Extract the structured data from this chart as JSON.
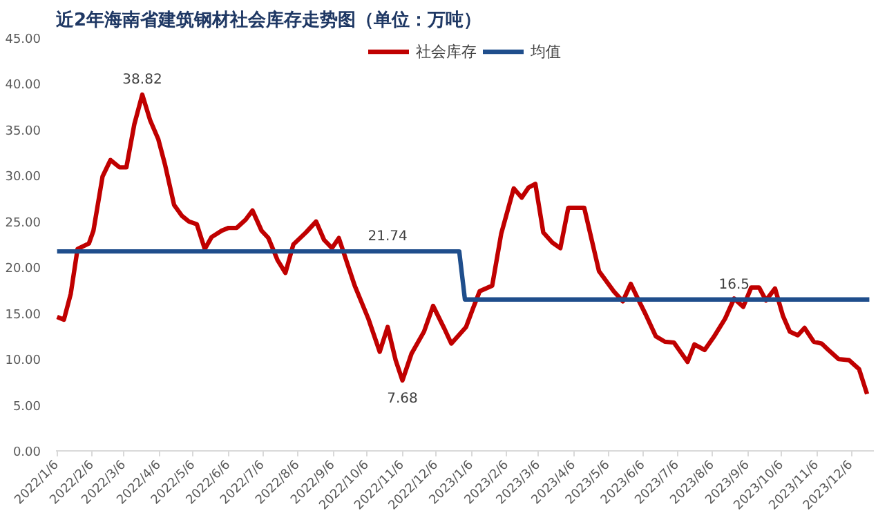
{
  "chart_data": {
    "type": "line",
    "title": "近2年海南省建筑钢材社会库存走势图（单位：万吨）",
    "series": [
      {
        "name": "社会库存",
        "color": "#c00000",
        "x": [
          "2022-01-06",
          "2022-01-12",
          "2022-01-18",
          "2022-01-24",
          "2022-02-03",
          "2022-02-07",
          "2022-02-15",
          "2022-02-22",
          "2022-03-02",
          "2022-03-08",
          "2022-03-15",
          "2022-03-22",
          "2022-03-29",
          "2022-04-05",
          "2022-04-11",
          "2022-04-19",
          "2022-04-26",
          "2022-05-02",
          "2022-05-09",
          "2022-05-16",
          "2022-05-22",
          "2022-05-31",
          "2022-06-06",
          "2022-06-13",
          "2022-06-21",
          "2022-06-27",
          "2022-07-05",
          "2022-07-11",
          "2022-07-19",
          "2022-07-26",
          "2022-08-02",
          "2022-08-13",
          "2022-08-22",
          "2022-08-29",
          "2022-09-05",
          "2022-09-11",
          "2022-09-25",
          "2022-10-07",
          "2022-10-17",
          "2022-10-24",
          "2022-10-31",
          "2022-11-06",
          "2022-11-14",
          "2022-11-25",
          "2022-12-03",
          "2022-12-13",
          "2022-12-19",
          "2023-01-01",
          "2023-01-07",
          "2023-01-13",
          "2023-01-24",
          "2023-02-01",
          "2023-02-12",
          "2023-02-19",
          "2023-02-25",
          "2023-03-03",
          "2023-03-10",
          "2023-03-18",
          "2023-03-25",
          "2023-04-01",
          "2023-04-15",
          "2023-04-28",
          "2023-05-11",
          "2023-05-19",
          "2023-05-26",
          "2023-06-02",
          "2023-06-08",
          "2023-06-17",
          "2023-06-25",
          "2023-07-03",
          "2023-07-15",
          "2023-07-21",
          "2023-07-30",
          "2023-08-07",
          "2023-08-17",
          "2023-08-25",
          "2023-09-02",
          "2023-09-09",
          "2023-09-16",
          "2023-09-22",
          "2023-09-30",
          "2023-10-07",
          "2023-10-13",
          "2023-10-20",
          "2023-10-26",
          "2023-11-03",
          "2023-11-10",
          "2023-11-16",
          "2023-11-25",
          "2023-12-04",
          "2023-12-13",
          "2023-12-20"
        ],
        "values": [
          14.6,
          14.3,
          17.1,
          22.0,
          22.6,
          24.0,
          29.9,
          31.7,
          30.9,
          30.9,
          35.6,
          38.82,
          36.0,
          34.0,
          31.2,
          26.8,
          25.6,
          25.0,
          24.7,
          22.0,
          23.3,
          24.0,
          24.3,
          24.3,
          25.2,
          26.2,
          24.0,
          23.2,
          20.8,
          19.4,
          22.5,
          23.8,
          25.0,
          23.0,
          22.1,
          23.2,
          18.0,
          14.4,
          10.8,
          13.5,
          9.9,
          7.68,
          10.6,
          13.0,
          15.8,
          13.3,
          11.7,
          13.5,
          15.5,
          17.4,
          18.0,
          23.7,
          28.6,
          27.6,
          28.7,
          29.1,
          23.8,
          22.7,
          22.1,
          26.5,
          26.5,
          19.6,
          17.4,
          16.3,
          18.2,
          16.4,
          14.9,
          12.5,
          11.9,
          11.8,
          9.7,
          11.6,
          11.0,
          12.4,
          14.4,
          16.6,
          15.7,
          17.8,
          17.8,
          16.4,
          17.7,
          14.7,
          13.0,
          12.6,
          13.4,
          11.9,
          11.7,
          11.0,
          10.0,
          9.9,
          8.9,
          6.2
        ]
      },
      {
        "name": "均值",
        "color": "#1f4e8c",
        "x": [
          "2022-01-06",
          "2022-12-26",
          "2022-12-31",
          "2023-12-22"
        ],
        "values": [
          21.74,
          21.74,
          16.5,
          16.5
        ]
      }
    ],
    "annotations": [
      {
        "text": "38.82",
        "x": "2022-03-22",
        "y": 38.82
      },
      {
        "text": "7.68",
        "x": "2022-11-06",
        "y": 7.68
      },
      {
        "text": "21.74",
        "x": "2022-10-24",
        "y": 21.74
      },
      {
        "text": "16.5",
        "x": "2023-08-25",
        "y": 16.5
      }
    ],
    "xlim": [
      "2022-01-05",
      "2023-12-26"
    ],
    "xticks": [
      {
        "value": "2022-01-06",
        "label": "2022/1/6"
      },
      {
        "value": "2022-02-06",
        "label": "2022/2/6"
      },
      {
        "value": "2022-03-06",
        "label": "2022/3/6"
      },
      {
        "value": "2022-04-06",
        "label": "2022/4/6"
      },
      {
        "value": "2022-05-06",
        "label": "2022/5/6"
      },
      {
        "value": "2022-06-06",
        "label": "2022/6/6"
      },
      {
        "value": "2022-07-06",
        "label": "2022/7/6"
      },
      {
        "value": "2022-08-06",
        "label": "2022/8/6"
      },
      {
        "value": "2022-09-06",
        "label": "2022/9/6"
      },
      {
        "value": "2022-10-06",
        "label": "2022/10/6"
      },
      {
        "value": "2022-11-06",
        "label": "2022/11/6"
      },
      {
        "value": "2022-12-06",
        "label": "2022/12/6"
      },
      {
        "value": "2023-01-06",
        "label": "2023/1/6"
      },
      {
        "value": "2023-02-06",
        "label": "2023/2/6"
      },
      {
        "value": "2023-03-06",
        "label": "2023/3/6"
      },
      {
        "value": "2023-04-06",
        "label": "2023/4/6"
      },
      {
        "value": "2023-05-06",
        "label": "2023/5/6"
      },
      {
        "value": "2023-06-06",
        "label": "2023/6/6"
      },
      {
        "value": "2023-07-06",
        "label": "2023/7/6"
      },
      {
        "value": "2023-08-06",
        "label": "2023/8/6"
      },
      {
        "value": "2023-09-06",
        "label": "2023/9/6"
      },
      {
        "value": "2023-10-06",
        "label": "2023/10/6"
      },
      {
        "value": "2023-11-06",
        "label": "2023/11/6"
      },
      {
        "value": "2023-12-06",
        "label": "2023/12/6"
      }
    ],
    "ylim": [
      0,
      45
    ],
    "yticks": [
      {
        "value": 0,
        "label": "0.00"
      },
      {
        "value": 5,
        "label": "5.00"
      },
      {
        "value": 10,
        "label": "10.00"
      },
      {
        "value": 15,
        "label": "15.00"
      },
      {
        "value": 20,
        "label": "20.00"
      },
      {
        "value": 25,
        "label": "25.00"
      },
      {
        "value": 30,
        "label": "30.00"
      },
      {
        "value": 35,
        "label": "35.00"
      },
      {
        "value": 40,
        "label": "40.00"
      },
      {
        "value": 45,
        "label": "45.00"
      }
    ],
    "grid": false,
    "legend": "top",
    "marker": "none",
    "line_style": "solid"
  }
}
